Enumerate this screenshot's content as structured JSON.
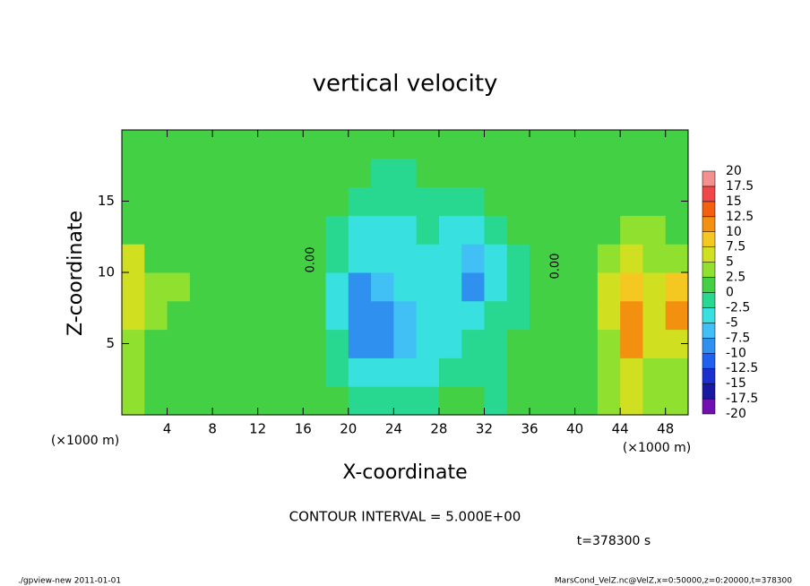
{
  "chart_data": {
    "type": "contour",
    "title": "vertical velocity",
    "x_label": "X-coordinate",
    "y_label": "Z-coordinate",
    "x_unit_labels": [
      "(×1000 m)",
      "(×1000 m)"
    ],
    "xlim": [
      0,
      50
    ],
    "xticks": [
      4,
      8,
      12,
      16,
      20,
      24,
      28,
      32,
      36,
      40,
      44,
      48
    ],
    "ylim": [
      0,
      20
    ],
    "yticks": [
      5,
      10,
      15
    ],
    "x": [
      1,
      3,
      5,
      7,
      9,
      11,
      13,
      15,
      17,
      19,
      21,
      23,
      25,
      27,
      29,
      31,
      33,
      35,
      37,
      39,
      41,
      43,
      45,
      47,
      49
    ],
    "z": [
      1,
      3,
      5,
      7,
      9,
      11,
      13,
      15,
      17,
      19
    ],
    "values": [
      [
        3,
        2,
        1,
        1,
        1,
        1,
        1,
        2,
        1,
        0,
        -1,
        -2,
        -2,
        -1,
        0,
        0,
        -1,
        0,
        1,
        1,
        1,
        4,
        5,
        3,
        4
      ],
      [
        3,
        2,
        1,
        1,
        1,
        1,
        1,
        1,
        1,
        -1,
        -4,
        -5,
        -4,
        -3,
        -2,
        -1,
        -1,
        0,
        1,
        1,
        1,
        3,
        7,
        4,
        4
      ],
      [
        4,
        2,
        1,
        1,
        1,
        1,
        1,
        1,
        1,
        -2,
        -8,
        -8,
        -7,
        -4,
        -3,
        -2,
        -1,
        0,
        1,
        1,
        2,
        4,
        12,
        6,
        6
      ],
      [
        7,
        3,
        2,
        1,
        1,
        1,
        1,
        1,
        1,
        -3,
        -9,
        -8,
        -7,
        -5,
        -4,
        -3,
        -2,
        -1,
        1,
        1,
        2,
        6,
        11,
        7,
        10
      ],
      [
        7,
        3,
        3,
        1,
        1,
        1,
        1,
        1,
        1,
        -3,
        -8,
        -7,
        -5,
        -4,
        -5,
        -8,
        -5,
        -1,
        1,
        1,
        2,
        5,
        8,
        7,
        8
      ],
      [
        5,
        2,
        2,
        1,
        1,
        1,
        1,
        1,
        1,
        -2,
        -5,
        -5,
        -4,
        -3,
        -5,
        -6,
        -4,
        -1,
        1,
        1,
        1,
        3,
        5,
        4,
        4
      ],
      [
        2,
        1,
        1,
        1,
        1,
        1,
        1,
        1,
        1,
        -1,
        -3,
        -4,
        -3,
        -2,
        -3,
        -3,
        -2,
        0,
        1,
        1,
        1,
        2,
        3,
        3,
        2
      ],
      [
        1,
        1,
        1,
        1,
        1,
        1,
        1,
        1,
        1,
        0,
        -1,
        -2,
        -2,
        -1,
        -1,
        -1,
        0,
        1,
        1,
        1,
        1,
        1,
        2,
        2,
        1
      ],
      [
        1,
        1,
        1,
        1,
        1,
        1,
        1,
        1,
        1,
        1,
        0,
        -1,
        -1,
        0,
        0,
        1,
        1,
        1,
        1,
        1,
        1,
        1,
        1,
        1,
        1
      ],
      [
        1,
        1,
        1,
        1,
        1,
        1,
        1,
        1,
        1,
        1,
        1,
        1,
        1,
        1,
        1,
        1,
        1,
        1,
        1,
        1,
        1,
        1,
        1,
        1,
        1
      ]
    ],
    "colorbar": {
      "levels": [
        -20,
        -17.5,
        -15,
        -12.5,
        -10,
        -7.5,
        -5,
        -2.5,
        0,
        2.5,
        5,
        7.5,
        10,
        12.5,
        15,
        17.5,
        20
      ],
      "colors": [
        "#7010b0",
        "#1818a0",
        "#1c30d0",
        "#2060f0",
        "#3090f0",
        "#40c0f4",
        "#38e0e0",
        "#28d890",
        "#44d044",
        "#90e030",
        "#d0e020",
        "#f4c820",
        "#f49010",
        "#f46010",
        "#f04848",
        "#f49090"
      ]
    },
    "contour_labels": [
      "0.00",
      "0.00"
    ],
    "contour_interval": "CONTOUR INTERVAL = 5.000E+00",
    "time_label": "t=378300 s",
    "footer_left": "./gpview-new  2011-01-01",
    "footer_right": "MarsCond_VelZ.nc@VelZ,x=0:50000,z=0:20000,t=378300"
  }
}
